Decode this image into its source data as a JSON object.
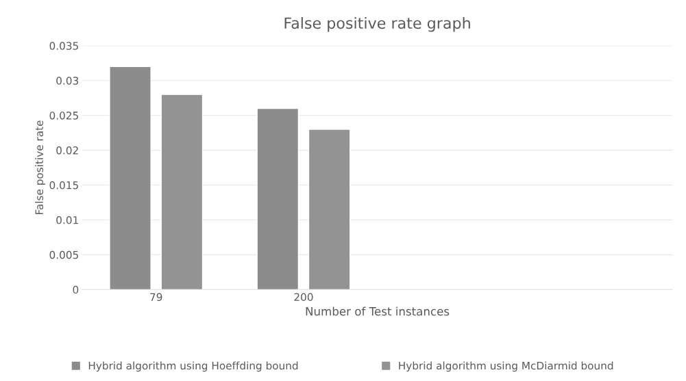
{
  "chart_data": {
    "type": "bar",
    "title": "False positive rate graph",
    "xlabel": "Number of Test instances",
    "ylabel": "False positive rate",
    "categories": [
      "79",
      "200",
      null,
      null
    ],
    "series": [
      {
        "name": "Hybrid algorithm using Hoeffding bound",
        "color": "#8c8c8c",
        "values": [
          0.032,
          0.026,
          null,
          null
        ]
      },
      {
        "name": "Hybrid algorithm using McDiarmid bound",
        "color": "#939393",
        "values": [
          0.028,
          0.023,
          null,
          null
        ]
      }
    ],
    "ylim": [
      0,
      0.035
    ],
    "yticks": [
      0,
      0.005,
      0.01,
      0.015,
      0.02,
      0.025,
      0.03,
      0.035
    ],
    "grid": "y",
    "legend": "bottom"
  }
}
